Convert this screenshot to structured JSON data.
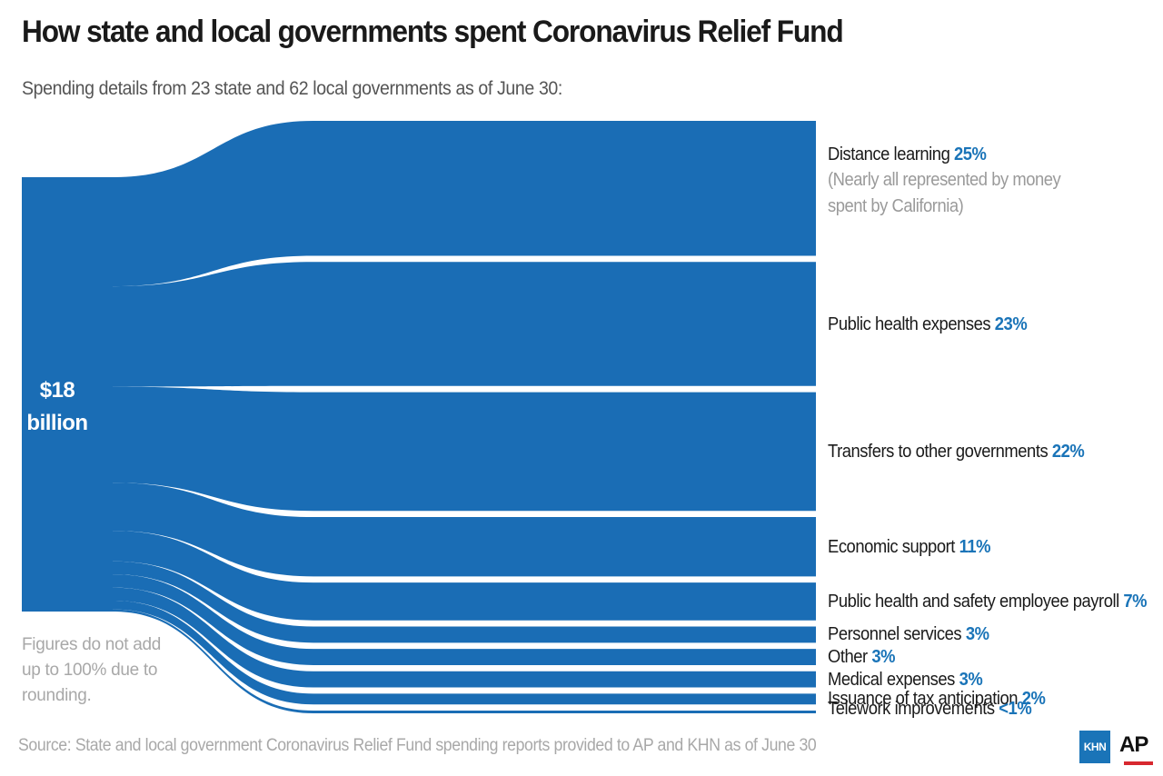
{
  "title": "How state and local governments spent Coronavirus Relief Fund",
  "subtitle": "Spending details from 23 state and 62 local governments as of June 30:",
  "total_line1": "$18",
  "total_line2": "billion",
  "note": "Figures do not add up to 100% due to rounding.",
  "source": "Source: State and local government Coronavirus Relief Fund spending reports provided to AP and KHN as of June 30",
  "logos": {
    "khn": "KHN",
    "ap": "AP"
  },
  "colors": {
    "flow": "#1a6db5",
    "pct": "#1a74b8"
  },
  "chart_data": {
    "type": "sankey",
    "source_node": "$18 billion",
    "categories": [
      "Distance learning",
      "Public health expenses",
      "Transfers to other governments",
      "Economic support",
      "Public health and safety employee payroll",
      "Personnel services",
      "Other",
      "Medical expenses",
      "Issuance of tax anticipation",
      "Telework improvements"
    ],
    "values": [
      25,
      23,
      22,
      11,
      7,
      3,
      3,
      3,
      2,
      0.5
    ],
    "value_labels": [
      "25%",
      "23%",
      "22%",
      "11%",
      "7%",
      "3%",
      "3%",
      "3%",
      "2%",
      "<1%"
    ],
    "annotation": "(Nearly all represented by money spent by California)"
  }
}
